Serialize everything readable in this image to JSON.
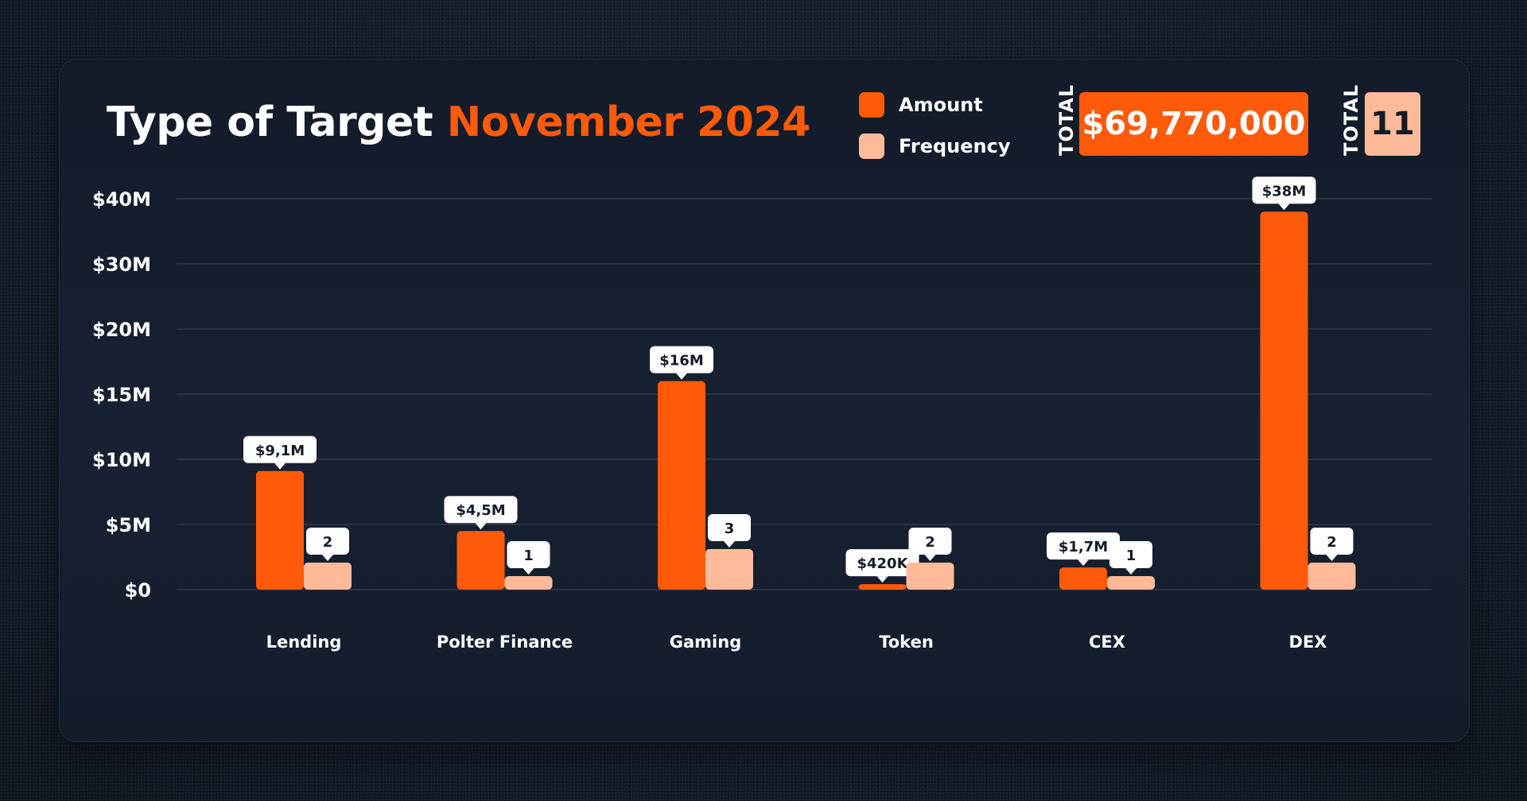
{
  "title": {
    "prefix": "Type of Target",
    "highlight": "November 2024"
  },
  "legend": [
    {
      "label": "Amount",
      "color": "#ff5a0a"
    },
    {
      "label": "Frequency",
      "color": "#ffbb99"
    }
  ],
  "totals": {
    "amount_tag": "TOTAL",
    "amount_value": "$69,770,000",
    "count_tag": "TOTAL",
    "count_value": "11"
  },
  "colors": {
    "amount": "#ff5a0a",
    "frequency": "#ffbb99",
    "background": "#141b28",
    "grid": "#2e3a4c"
  },
  "chart_data": {
    "type": "bar",
    "categories": [
      "Lending",
      "Polter Finance",
      "Gaming",
      "Token",
      "CEX",
      "DEX"
    ],
    "yticks": [
      "$0",
      "$5M",
      "$10M",
      "$15M",
      "$20M",
      "$30M",
      "$40M"
    ],
    "grid": true,
    "legend_position": "top-right",
    "series": [
      {
        "name": "Amount",
        "values": [
          9100000,
          4500000,
          16000000,
          420000,
          1700000,
          38000000
        ],
        "labels": [
          "$9,1M",
          "$4,5M",
          "$16M",
          "$420K",
          "$1,7M",
          "$38M"
        ]
      },
      {
        "name": "Frequency",
        "values": [
          2,
          1,
          3,
          2,
          1,
          2
        ],
        "labels": [
          "2",
          "1",
          "3",
          "2",
          "1",
          "2"
        ]
      }
    ]
  }
}
